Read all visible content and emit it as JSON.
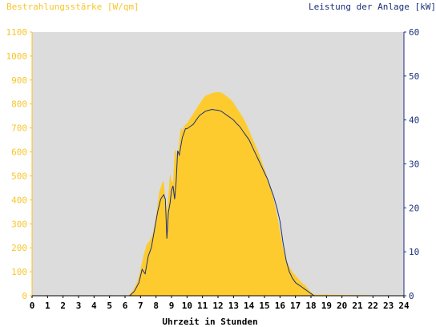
{
  "chart_data": {
    "type": "area",
    "title_left": "Bestrahlungsstärke [W/qm]",
    "title_right": "Leistung der Anlage [kW]",
    "xlabel": "Uhrzeit in Stunden",
    "xlim": [
      0,
      24
    ],
    "x_ticks": [
      "0",
      "1",
      "2",
      "3",
      "4",
      "5",
      "6",
      "7",
      "8",
      "9",
      "10",
      "11",
      "12",
      "13",
      "14",
      "15",
      "16",
      "17",
      "18",
      "19",
      "20",
      "21",
      "22",
      "23",
      "24"
    ],
    "ylim_left": [
      0,
      1100
    ],
    "y_ticks_left": [
      "0",
      "100",
      "200",
      "300",
      "400",
      "500",
      "600",
      "700",
      "800",
      "900",
      "1000",
      "1100"
    ],
    "ylim_right": [
      0,
      60
    ],
    "y_ticks_right": [
      "0",
      "10",
      "20",
      "30",
      "40",
      "50",
      "60"
    ],
    "grid": false,
    "colors": {
      "plot_background": "#dcdcdc",
      "irradiance_fill": "#fecb2f",
      "power_line": "#1a2f7a",
      "left_axis": "#f7c52c",
      "right_axis": "#1a2f7a"
    },
    "series": [
      {
        "axis": "left",
        "style": "filled-area",
        "x": [
          0,
          6.2,
          6.5,
          6.8,
          7.0,
          7.2,
          7.4,
          7.6,
          7.8,
          8.0,
          8.2,
          8.4,
          8.5,
          8.6,
          8.7,
          8.8,
          8.9,
          9.0,
          9.1,
          9.2,
          9.3,
          9.4,
          9.5,
          9.6,
          9.7,
          9.8,
          9.9,
          10.0,
          10.2,
          10.4,
          10.6,
          10.8,
          11.0,
          11.2,
          11.4,
          11.6,
          11.8,
          12.0,
          12.2,
          12.4,
          12.6,
          12.8,
          13.0,
          13.2,
          13.4,
          13.6,
          13.8,
          14.0,
          14.2,
          14.4,
          14.6,
          14.8,
          15.0,
          15.2,
          15.4,
          15.6,
          15.8,
          16.0,
          16.2,
          16.4,
          16.6,
          16.8,
          17.0,
          17.2,
          17.4,
          17.6,
          17.8,
          18.0,
          18.2,
          24
        ],
        "values": [
          0,
          0,
          20,
          60,
          110,
          170,
          215,
          230,
          260,
          330,
          430,
          470,
          480,
          400,
          350,
          420,
          510,
          480,
          470,
          600,
          610,
          570,
          650,
          700,
          690,
          705,
          715,
          720,
          740,
          760,
          780,
          800,
          820,
          835,
          840,
          845,
          848,
          850,
          848,
          840,
          830,
          820,
          805,
          785,
          765,
          745,
          720,
          690,
          660,
          630,
          600,
          565,
          530,
          490,
          450,
          400,
          340,
          270,
          200,
          150,
          120,
          100,
          85,
          70,
          55,
          45,
          30,
          15,
          5,
          0
        ]
      },
      {
        "axis": "right",
        "style": "line",
        "x": [
          0,
          6.3,
          6.6,
          6.9,
          7.1,
          7.3,
          7.5,
          7.7,
          7.9,
          8.1,
          8.3,
          8.5,
          8.6,
          8.7,
          8.8,
          8.9,
          9.0,
          9.1,
          9.2,
          9.3,
          9.4,
          9.5,
          9.6,
          9.7,
          9.8,
          9.9,
          10.0,
          10.2,
          10.4,
          10.6,
          10.8,
          11.0,
          11.2,
          11.4,
          11.6,
          11.8,
          12.0,
          12.2,
          12.4,
          12.6,
          12.8,
          13.0,
          13.2,
          13.4,
          13.6,
          13.8,
          14.0,
          14.2,
          14.4,
          14.6,
          14.8,
          15.0,
          15.2,
          15.4,
          15.6,
          15.8,
          16.0,
          16.2,
          16.4,
          16.6,
          16.8,
          17.0,
          17.2,
          17.4,
          17.6,
          17.8,
          18.0,
          18.2,
          24
        ],
        "values": [
          0,
          0,
          1,
          3,
          6,
          5,
          9,
          11,
          15,
          19,
          22,
          23,
          22,
          13,
          19,
          21,
          24,
          25,
          22,
          26,
          33,
          32,
          34,
          36,
          37,
          38,
          38,
          38.5,
          39,
          40,
          41,
          41.5,
          42,
          42.2,
          42.4,
          42.3,
          42.2,
          42.0,
          41.5,
          41.0,
          40.5,
          40.0,
          39.2,
          38.5,
          37.5,
          36.5,
          35.5,
          34.0,
          32.5,
          31.0,
          29.5,
          28.0,
          26.5,
          24.5,
          22.5,
          20.0,
          17.0,
          12.0,
          8.0,
          5.5,
          4.0,
          3.0,
          2.5,
          2.0,
          1.5,
          1.0,
          0.5,
          0,
          0
        ]
      }
    ]
  }
}
